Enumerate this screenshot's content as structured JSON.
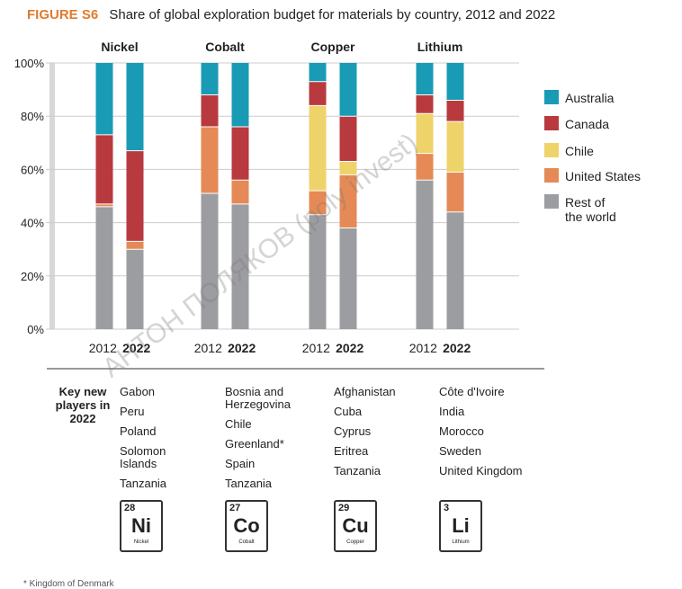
{
  "figure": {
    "label": "FIGURE S6",
    "title": "Share of global exploration budget for materials by country, 2012 and 2022"
  },
  "colors": {
    "australia": "#1a9bb5",
    "canada": "#b83a3f",
    "chile": "#eed36a",
    "united_states": "#e58a56",
    "rest": "#9c9da1",
    "axis_line": "#cccccc",
    "grey_bar": "#d8d8d8"
  },
  "chart_data": {
    "type": "bar",
    "stacked": true,
    "ylim": [
      0,
      100
    ],
    "yticks": [
      0,
      20,
      40,
      60,
      80,
      100
    ],
    "ytick_labels": [
      "0%",
      "20%",
      "40%",
      "60%",
      "80%",
      "100%"
    ],
    "groups": [
      "Nickel",
      "Cobalt",
      "Copper",
      "Lithium"
    ],
    "years": [
      "2012",
      "2022"
    ],
    "series_order": [
      "Rest of the world",
      "United States",
      "Chile",
      "Canada",
      "Australia"
    ],
    "legend": [
      {
        "key": "australia",
        "label": "Australia"
      },
      {
        "key": "canada",
        "label": "Canada"
      },
      {
        "key": "chile",
        "label": "Chile"
      },
      {
        "key": "united_states",
        "label": "United States"
      },
      {
        "key": "rest",
        "label": "Rest of the world"
      }
    ],
    "legend_position": "right",
    "bars": [
      {
        "group": "Nickel",
        "year": "2012",
        "Rest of the world": 46,
        "United States": 1,
        "Chile": 0,
        "Canada": 26,
        "Australia": 27
      },
      {
        "group": "Nickel",
        "year": "2022",
        "Rest of the world": 30,
        "United States": 3,
        "Chile": 0,
        "Canada": 34,
        "Australia": 33
      },
      {
        "group": "Cobalt",
        "year": "2012",
        "Rest of the world": 51,
        "United States": 25,
        "Chile": 0,
        "Canada": 12,
        "Australia": 12
      },
      {
        "group": "Cobalt",
        "year": "2022",
        "Rest of the world": 47,
        "United States": 9,
        "Chile": 0,
        "Canada": 20,
        "Australia": 24
      },
      {
        "group": "Copper",
        "year": "2012",
        "Rest of the world": 43,
        "United States": 9,
        "Chile": 32,
        "Canada": 9,
        "Australia": 7
      },
      {
        "group": "Copper",
        "year": "2022",
        "Rest of the world": 38,
        "United States": 20,
        "Chile": 5,
        "Canada": 17,
        "Australia": 20
      },
      {
        "group": "Lithium",
        "year": "2012",
        "Rest of the world": 56,
        "United States": 10,
        "Chile": 15,
        "Canada": 7,
        "Australia": 12
      },
      {
        "group": "Lithium",
        "year": "2022",
        "Rest of the world": 44,
        "United States": 15,
        "Chile": 19,
        "Canada": 8,
        "Australia": 14
      }
    ]
  },
  "new_players": {
    "label": "Key new players in 2022",
    "columns": [
      [
        "Gabon",
        "Peru",
        "Poland",
        "Solomon Islands",
        "Tanzania"
      ],
      [
        "Bosnia and Herzegovina",
        "Chile",
        "Greenland*",
        "Spain",
        "Tanzania"
      ],
      [
        "Afghanistan",
        "Cuba",
        "Cyprus",
        "Eritrea",
        "Tanzania"
      ],
      [
        "Côte d'Ivoire",
        "India",
        "Morocco",
        "Sweden",
        "United Kingdom"
      ]
    ]
  },
  "elements": [
    {
      "number": "28",
      "symbol": "Ni",
      "name": "Nickel"
    },
    {
      "number": "27",
      "symbol": "Co",
      "name": "Cobalt"
    },
    {
      "number": "29",
      "symbol": "Cu",
      "name": "Copper"
    },
    {
      "number": "3",
      "symbol": "Li",
      "name": "Lithium"
    }
  ],
  "watermark": "АНТОН ПОЛЯКОВ (poly invest)",
  "footnote": "* Kingdom of Denmark"
}
